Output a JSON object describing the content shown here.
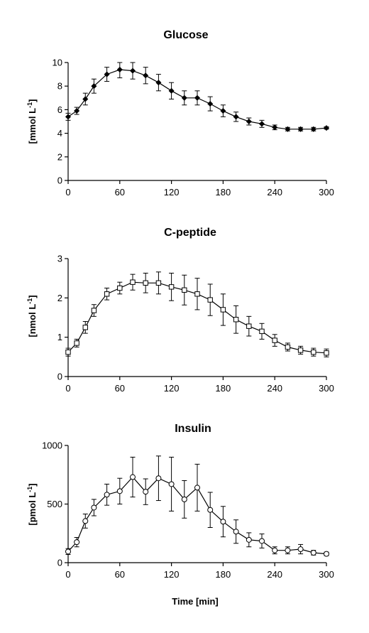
{
  "chart_data": [
    {
      "type": "line",
      "title": "Glucose",
      "ylabel": "[mmol L",
      "ylabel_sup": "-1",
      "ylabel_end": "]",
      "xlabel": "",
      "xlim": [
        0,
        300
      ],
      "ylim": [
        0,
        10
      ],
      "xticks": [
        0,
        60,
        120,
        180,
        240,
        300
      ],
      "yticks": [
        0,
        2,
        4,
        6,
        8,
        10
      ],
      "marker": "filled-diamond",
      "x": [
        0,
        10,
        20,
        30,
        45,
        60,
        75,
        90,
        105,
        120,
        135,
        150,
        165,
        180,
        195,
        210,
        225,
        240,
        255,
        270,
        285,
        300
      ],
      "values": [
        5.4,
        5.9,
        6.9,
        8.0,
        9.0,
        9.4,
        9.3,
        8.9,
        8.3,
        7.6,
        7.0,
        7.0,
        6.5,
        5.9,
        5.4,
        5.0,
        4.8,
        4.5,
        4.35,
        4.35,
        4.35,
        4.45
      ],
      "errors": [
        0.3,
        0.3,
        0.5,
        0.6,
        0.6,
        0.7,
        0.7,
        0.7,
        0.7,
        0.7,
        0.6,
        0.6,
        0.6,
        0.5,
        0.4,
        0.3,
        0.3,
        0.2,
        0.15,
        0.15,
        0.15,
        0.1
      ]
    },
    {
      "type": "line",
      "title": "C-peptide",
      "ylabel": "[nmol L",
      "ylabel_sup": "-1",
      "ylabel_end": "]",
      "xlabel": "",
      "xlim": [
        0,
        300
      ],
      "ylim": [
        0,
        3
      ],
      "xticks": [
        0,
        60,
        120,
        180,
        240,
        300
      ],
      "yticks": [
        0,
        1,
        2,
        3
      ],
      "marker": "open-square",
      "x": [
        0,
        10,
        20,
        30,
        45,
        60,
        75,
        90,
        105,
        120,
        135,
        150,
        165,
        180,
        195,
        210,
        225,
        240,
        255,
        270,
        285,
        300
      ],
      "values": [
        0.62,
        0.85,
        1.25,
        1.68,
        2.1,
        2.25,
        2.4,
        2.38,
        2.38,
        2.28,
        2.2,
        2.1,
        1.95,
        1.7,
        1.45,
        1.28,
        1.15,
        0.92,
        0.75,
        0.67,
        0.62,
        0.6
      ],
      "errors": [
        0.1,
        0.1,
        0.15,
        0.15,
        0.15,
        0.15,
        0.2,
        0.25,
        0.28,
        0.35,
        0.38,
        0.4,
        0.4,
        0.4,
        0.35,
        0.25,
        0.2,
        0.15,
        0.1,
        0.1,
        0.1,
        0.1
      ]
    },
    {
      "type": "line",
      "title": "Insulin",
      "ylabel": "[pmol L",
      "ylabel_sup": "-1",
      "ylabel_end": "]",
      "xlabel": "Time [min]",
      "xlim": [
        0,
        300
      ],
      "ylim": [
        0,
        1000
      ],
      "xticks": [
        0,
        60,
        120,
        180,
        240,
        300
      ],
      "yticks": [
        0,
        500,
        1000
      ],
      "marker": "open-circle",
      "x": [
        0,
        10,
        20,
        30,
        45,
        60,
        75,
        90,
        105,
        120,
        135,
        150,
        165,
        180,
        195,
        210,
        225,
        240,
        255,
        270,
        285,
        300
      ],
      "values": [
        95,
        175,
        355,
        470,
        580,
        610,
        730,
        605,
        720,
        670,
        540,
        640,
        450,
        350,
        265,
        195,
        185,
        105,
        105,
        115,
        85,
        75
      ],
      "errors": [
        25,
        40,
        60,
        70,
        90,
        110,
        170,
        110,
        190,
        230,
        160,
        200,
        150,
        130,
        100,
        60,
        60,
        30,
        30,
        40,
        20,
        15
      ]
    }
  ]
}
